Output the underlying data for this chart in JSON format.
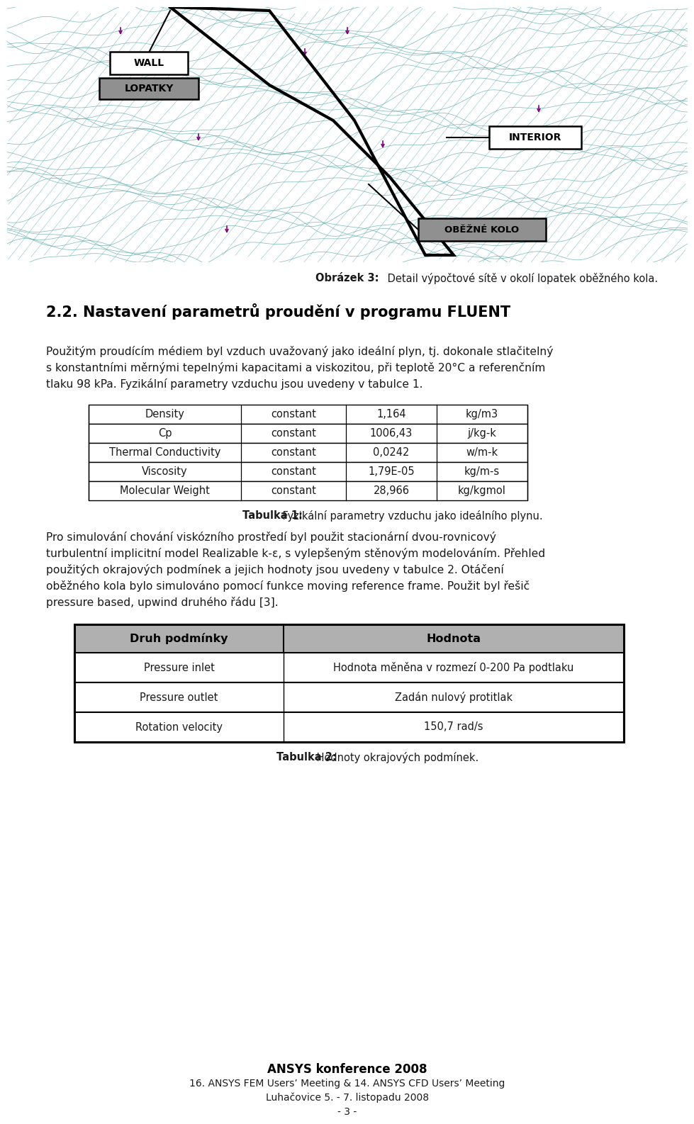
{
  "fig_caption_bold": "Obrázek 3:",
  "fig_caption_normal": " Detail výpočtové sítě v okolí lopatek oběžného kola.",
  "section_title": "2.2. Nastavení parametrů proudění v programu FLUENT",
  "para1_lines": [
    "Použitým proudícím médiem byl vzduch uvažovaný jako ideální plyn, tj. dokonale stlačitelný",
    "s konstantními měrnými tepelnými kapacitami a viskozitou, při teplotě 20°C a referenčním",
    "tlaku 98 kPa. Fyzikální parametry vzduchu jsou uvedeny v tabulce 1."
  ],
  "table1_caption_bold": "Tabulka 1:",
  "table1_caption_normal": " Fyzikální parametry vzduchu jako ideálního plynu.",
  "table1_rows": [
    [
      "Density",
      "constant",
      "1,164",
      "kg/m3"
    ],
    [
      "Cp",
      "constant",
      "1006,43",
      "j/kg-k"
    ],
    [
      "Thermal Conductivity",
      "constant",
      "0,0242",
      "w/m-k"
    ],
    [
      "Viscosity",
      "constant",
      "1,79E-05",
      "kg/m-s"
    ],
    [
      "Molecular Weight",
      "constant",
      "28,966",
      "kg/kgmol"
    ]
  ],
  "para2_lines": [
    "Pro simulování chování viskózního prostředí byl použit stacionární dvou-rovnicový",
    "turbulentní implicitní model Realizable k-ε, s vylepšeným stěnovým modelováním. Přehled",
    "použitých okrajových podmínek a jejich hodnoty jsou uvedeny v tabulce 2. Otáčení",
    "oběžného kola bylo simulováno pomocí funkce moving reference frame. Použit byl řešič",
    "pressure based, upwind druhého řádu [3]."
  ],
  "table2_caption_bold": "Tabulka 2:",
  "table2_caption_normal": " Hodnoty okrajových podmínek.",
  "table2_headers": [
    "Druh podmínky",
    "Hodnota"
  ],
  "table2_rows": [
    [
      "Pressure inlet",
      "Hodnota měněna v rozmezí 0-200 Pa podtlaku"
    ],
    [
      "Pressure outlet",
      "Zadán nulový protitlak"
    ],
    [
      "Rotation velocity",
      "150,7 rad/s"
    ]
  ],
  "footer_line1": "ANSYS konference 2008",
  "footer_line2": "16. ANSYS FEM Users’ Meeting & 14. ANSYS CFD Users’ Meeting",
  "footer_line3": "Luhačovice 5. - 7. listopadu 2008",
  "footer_line4": "- 3 -",
  "mesh_color": "#5ba8a8",
  "blade_color": "#000000",
  "label_wall_bg": "#ffffff",
  "label_lopatky_bg": "#909090",
  "label_interior_bg": "#ffffff",
  "label_obezne_bg": "#909090",
  "table2_header_bg": "#b0b0b0",
  "bg_color": "#ffffff"
}
